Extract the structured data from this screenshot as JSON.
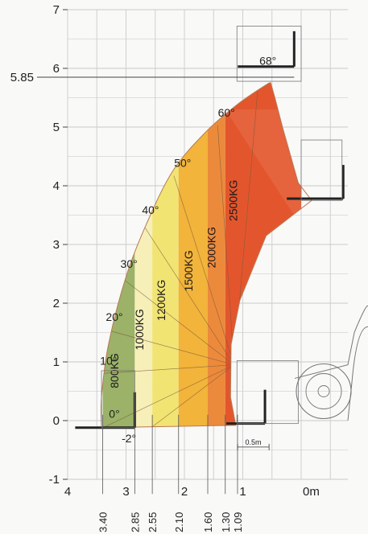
{
  "chart_data": {
    "type": "area",
    "title": "",
    "xlabel": "",
    "ylabel": "",
    "xlim": [
      4,
      0
    ],
    "ylim": [
      -1,
      7
    ],
    "grid": true,
    "y_ticks": [
      "-1",
      "0",
      "1",
      "2",
      "3",
      "4",
      "5",
      "6",
      "7"
    ],
    "y_special_tick": "5.85",
    "x_ticks": [
      "4",
      "3",
      "2",
      "1",
      "0m"
    ],
    "x_vertical_labels": [
      "3.40",
      "2.85",
      "2.55",
      "2.10",
      "1.60",
      "1.30",
      "1.09"
    ],
    "x_vertical_values": [
      3.4,
      2.85,
      2.55,
      2.1,
      1.6,
      1.3,
      1.09
    ],
    "scale_note": "0.5m",
    "angle_labels": [
      {
        "label": "68°",
        "x": 0.57,
        "y": 6.06
      },
      {
        "label": "60°",
        "x": 1.28,
        "y": 5.18
      },
      {
        "label": "50°",
        "x": 2.03,
        "y": 4.32
      },
      {
        "label": "40°",
        "x": 2.58,
        "y": 3.52
      },
      {
        "label": "30°",
        "x": 2.95,
        "y": 2.6
      },
      {
        "label": "20°",
        "x": 3.2,
        "y": 1.7
      },
      {
        "label": "10°",
        "x": 3.3,
        "y": 0.95
      },
      {
        "label": "0°",
        "x": 3.2,
        "y": 0.05
      },
      {
        "label": "-2°",
        "x": 2.95,
        "y": -0.37
      }
    ],
    "load_zones": [
      {
        "label": "800KG",
        "x_from": 3.4,
        "x_to": 2.85,
        "color": "#9bb268"
      },
      {
        "label": "1000KG",
        "x_from": 2.85,
        "x_to": 2.55,
        "color": "#f6efb8"
      },
      {
        "label": "1200KG",
        "x_from": 2.55,
        "x_to": 2.1,
        "color": "#f2e473"
      },
      {
        "label": "1500KG",
        "x_from": 2.1,
        "x_to": 1.6,
        "color": "#f2b43a"
      },
      {
        "label": "2000KG",
        "x_from": 1.6,
        "x_to": 1.3,
        "color": "#ec8a3c"
      },
      {
        "label": "2500KG",
        "x_from": 1.3,
        "x_to": 0.0,
        "color": "#e3562d"
      }
    ]
  }
}
